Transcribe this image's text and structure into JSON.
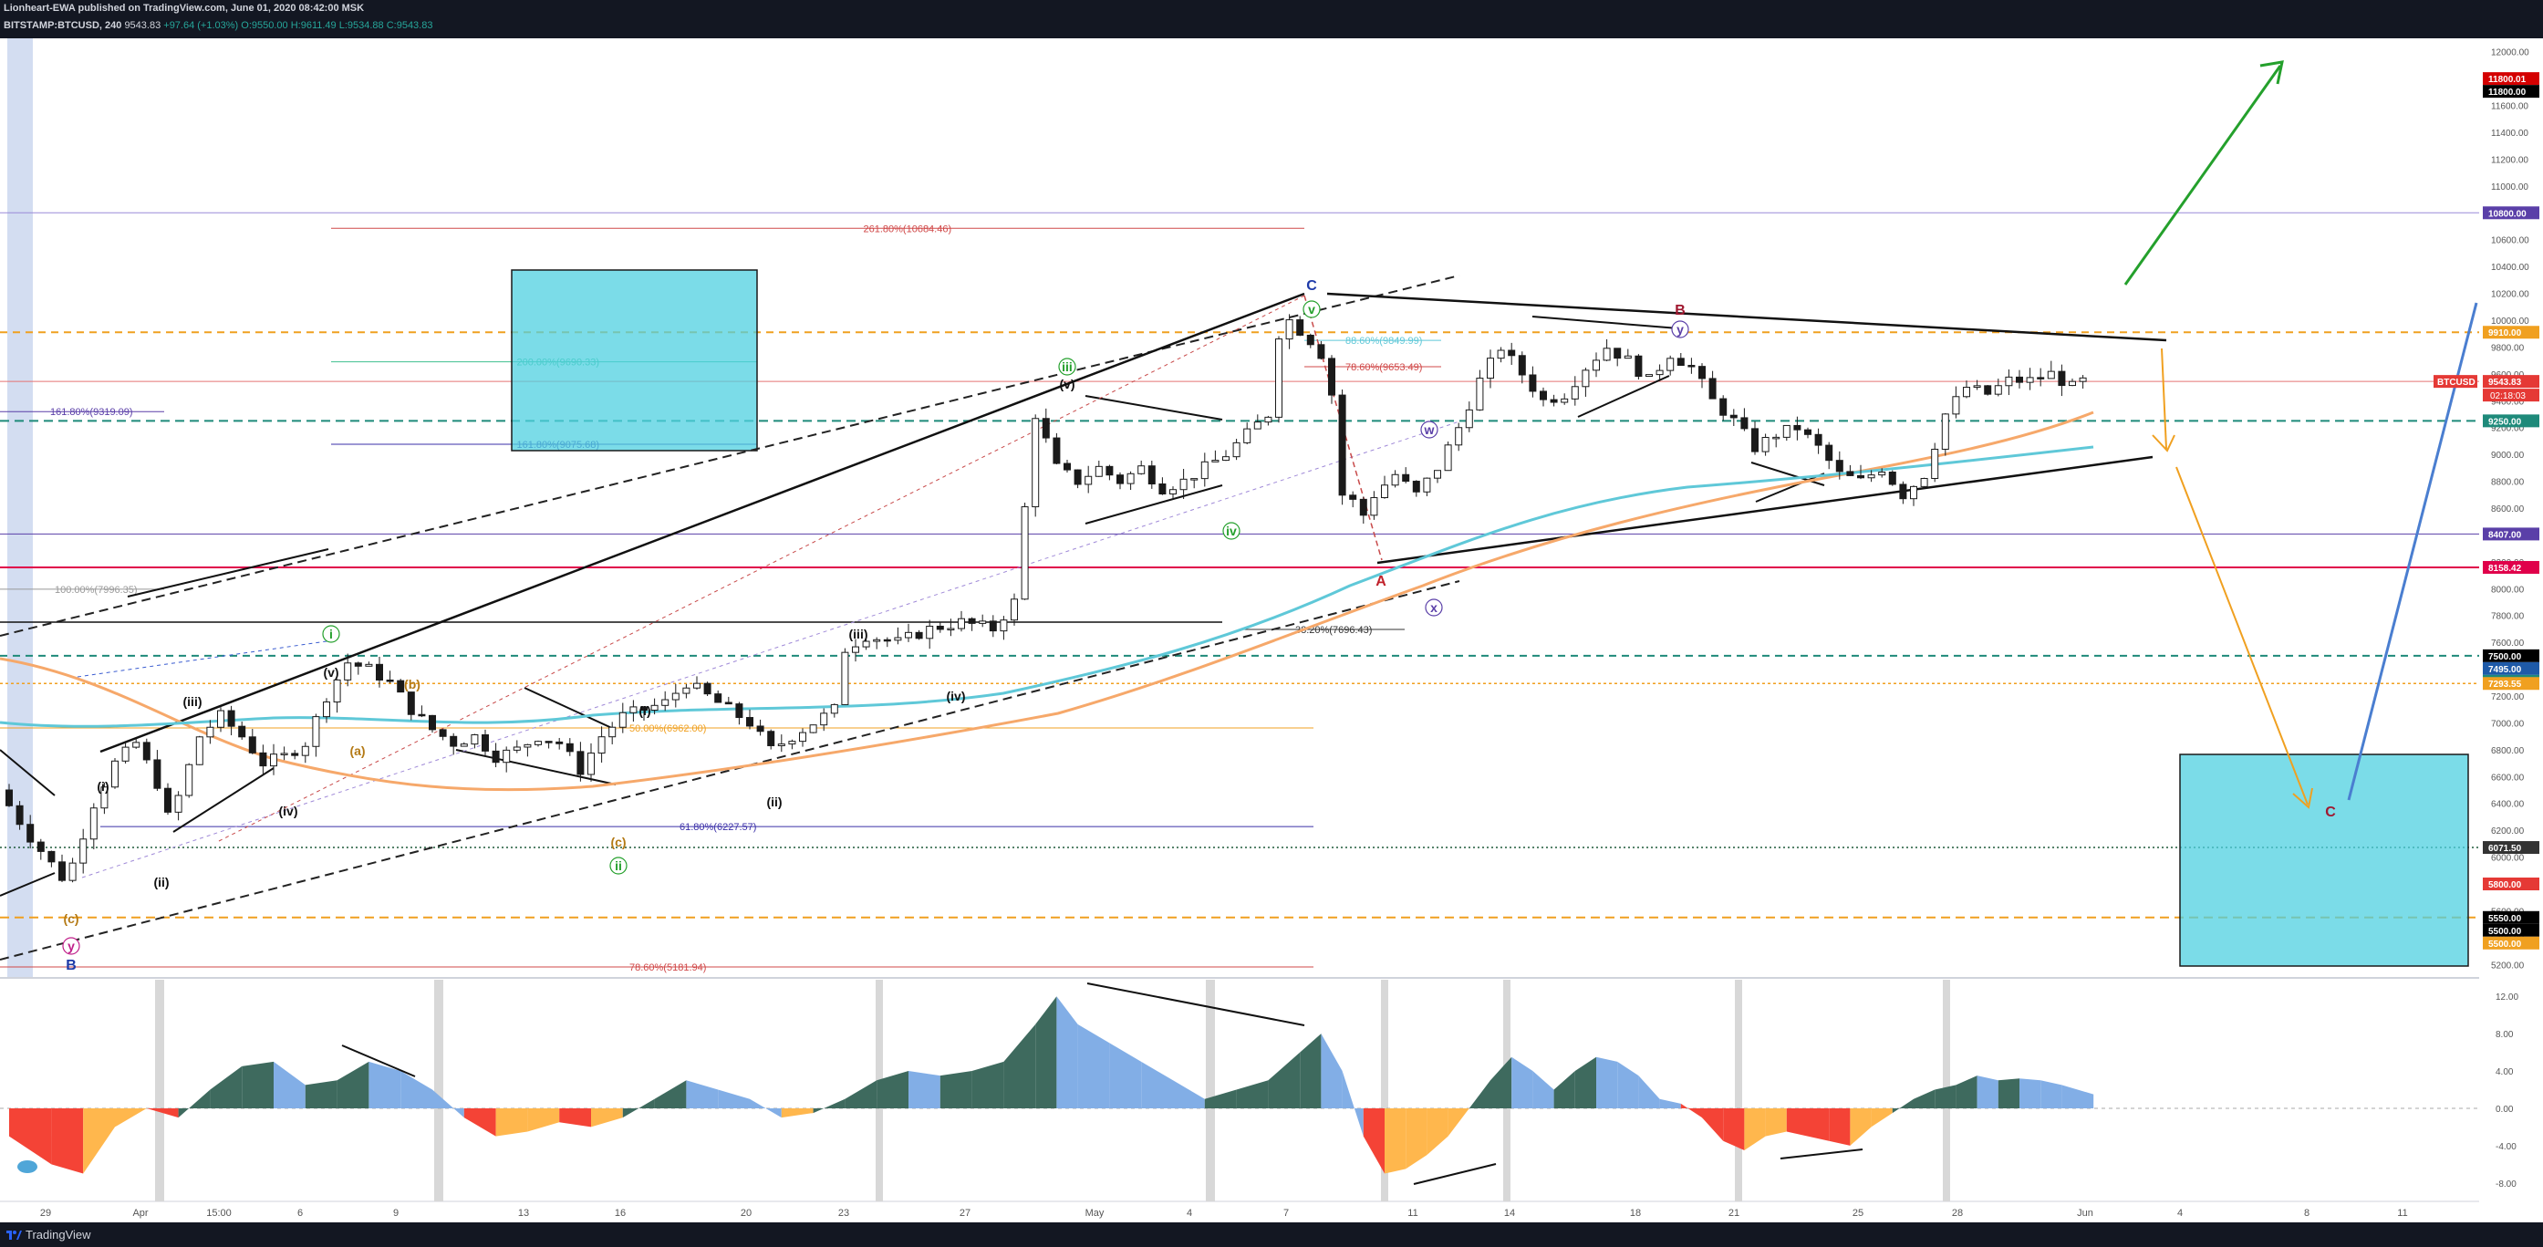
{
  "header": {
    "line1": "Lionheart-EWA published on TradingView.com, June 01, 2020 08:42:00 MSK",
    "symbol": "BITSTAMP:BTCUSD, 240",
    "last": "9543.83",
    "change": "+97.64 (+1.03%)",
    "ohlc": "O:9550.00 H:9611.49 L:9534.88 C:9543.83"
  },
  "footer": {
    "brand": "TradingView"
  },
  "chart_data": {
    "type": "candlestick",
    "symbol": "BITSTAMP:BTCUSD",
    "interval": "240",
    "ylim": [
      5100,
      12100
    ],
    "y_ticks": [
      5200,
      5400,
      5600,
      5800,
      6000,
      6200,
      6400,
      6600,
      6800,
      7000,
      7200,
      7400,
      7600,
      7800,
      8000,
      8200,
      8400,
      8600,
      8800,
      9000,
      9200,
      9400,
      9600,
      9800,
      10000,
      10200,
      10400,
      10600,
      10800,
      11000,
      11200,
      11400,
      11600,
      11800,
      12000
    ],
    "x_ticks": [
      "29",
      "Apr",
      "15:00",
      "6",
      "9",
      "13",
      "16",
      "20",
      "23",
      "27",
      "May",
      "4",
      "7",
      "11",
      "14",
      "18",
      "21",
      "25",
      "28",
      "Jun",
      "4",
      "8",
      "11"
    ],
    "price_path": [
      [
        0,
        6500
      ],
      [
        3,
        6150
      ],
      [
        6,
        5850
      ],
      [
        7,
        5950
      ],
      [
        9,
        6400
      ],
      [
        11,
        6700
      ],
      [
        13,
        6850
      ],
      [
        15,
        6550
      ],
      [
        16,
        6300
      ],
      [
        17,
        6450
      ],
      [
        19,
        6900
      ],
      [
        21,
        7050
      ],
      [
        23,
        6900
      ],
      [
        25,
        6700
      ],
      [
        27,
        6750
      ],
      [
        29,
        6850
      ],
      [
        31,
        7200
      ],
      [
        33,
        7450
      ],
      [
        35,
        7400
      ],
      [
        37,
        7300
      ],
      [
        39,
        7100
      ],
      [
        41,
        6950
      ],
      [
        43,
        6850
      ],
      [
        45,
        6900
      ],
      [
        47,
        6750
      ],
      [
        49,
        6800
      ],
      [
        51,
        6900
      ],
      [
        53,
        6850
      ],
      [
        55,
        6650
      ],
      [
        57,
        6900
      ],
      [
        59,
        7050
      ],
      [
        61,
        7100
      ],
      [
        63,
        7150
      ],
      [
        65,
        7300
      ],
      [
        67,
        7200
      ],
      [
        69,
        7100
      ],
      [
        71,
        7000
      ],
      [
        73,
        6800
      ],
      [
        75,
        6900
      ],
      [
        77,
        7000
      ],
      [
        79,
        7100
      ],
      [
        80,
        7550
      ],
      [
        82,
        7650
      ],
      [
        85,
        7600
      ],
      [
        88,
        7700
      ],
      [
        91,
        7750
      ],
      [
        94,
        7700
      ],
      [
        96,
        7900
      ],
      [
        97,
        8600
      ],
      [
        98,
        9300
      ],
      [
        100,
        8900
      ],
      [
        102,
        8800
      ],
      [
        104,
        8900
      ],
      [
        106,
        8800
      ],
      [
        108,
        8900
      ],
      [
        110,
        8750
      ],
      [
        112,
        8800
      ],
      [
        114,
        8900
      ],
      [
        116,
        9000
      ],
      [
        118,
        9150
      ],
      [
        120,
        9300
      ],
      [
        121,
        9900
      ],
      [
        122,
        10000
      ],
      [
        124,
        9850
      ],
      [
        125,
        9750
      ],
      [
        126,
        9450
      ],
      [
        127,
        8700
      ],
      [
        128,
        8650
      ],
      [
        129,
        8550
      ],
      [
        130,
        8700
      ],
      [
        132,
        8850
      ],
      [
        134,
        8700
      ],
      [
        136,
        8900
      ],
      [
        138,
        9200
      ],
      [
        140,
        9550
      ],
      [
        142,
        9800
      ],
      [
        144,
        9600
      ],
      [
        146,
        9400
      ],
      [
        148,
        9450
      ],
      [
        150,
        9650
      ],
      [
        152,
        9800
      ],
      [
        154,
        9700
      ],
      [
        156,
        9550
      ],
      [
        158,
        9750
      ],
      [
        160,
        9650
      ],
      [
        162,
        9400
      ],
      [
        164,
        9250
      ],
      [
        166,
        9050
      ],
      [
        168,
        9150
      ],
      [
        170,
        9200
      ],
      [
        172,
        9050
      ],
      [
        174,
        8850
      ],
      [
        176,
        8800
      ],
      [
        178,
        8900
      ],
      [
        180,
        8700
      ],
      [
        182,
        8850
      ],
      [
        184,
        9300
      ],
      [
        186,
        9500
      ],
      [
        188,
        9450
      ],
      [
        190,
        9550
      ],
      [
        192,
        9550
      ],
      [
        194,
        9600
      ],
      [
        196,
        9500
      ],
      [
        197,
        9543.83
      ]
    ],
    "horizontal_levels": [
      {
        "value": 11800.01,
        "label": "11800.01",
        "color": "#d40000"
      },
      {
        "value": 11800.0,
        "label": "11800.00",
        "color": "#000000"
      },
      {
        "value": 10800.0,
        "label": "10800.00",
        "color": "#5a3fa8"
      },
      {
        "value": 9910.0,
        "label": "9910.00",
        "color": "#f0a020"
      },
      {
        "value": 9543.83,
        "label": "9543.83",
        "color": "#e53935"
      },
      {
        "value": 9250.0,
        "label": "9250.00",
        "color": "#1e8a7a"
      },
      {
        "value": 8407.0,
        "label": "8407.00",
        "color": "#5a3fa8"
      },
      {
        "value": 8158.42,
        "label": "8158.42",
        "color": "#e0004a"
      },
      {
        "value": 7500.0,
        "label": "7500.00",
        "color": "#000000"
      },
      {
        "value": 7495.0,
        "label": "7495.00",
        "color": "#1e5aa8"
      },
      {
        "value": 7495.0,
        "label": "7495.00",
        "color": "#1e8a7a"
      },
      {
        "value": 7293.55,
        "label": "7293.55",
        "color": "#f0a020"
      },
      {
        "value": 6071.5,
        "label": "6071.50",
        "color": "#333333"
      },
      {
        "value": 5800.0,
        "label": "5800.00",
        "color": "#e53935"
      },
      {
        "value": 5550.0,
        "label": "5550.00",
        "color": "#000000"
      },
      {
        "value": 5500.0,
        "label": "5500.00",
        "color": "#000000"
      },
      {
        "value": 5500.0,
        "label": "5500.00",
        "color": "#f0a020"
      }
    ],
    "price_tag": {
      "symbol": "BTCUSD",
      "value": "9543.83",
      "countdown": "02:18:03"
    },
    "fib_labels": [
      "261.80%(10684.46)",
      "200.00%(9690.33)",
      "161.80%(9075.68)",
      "161.80%(9319.09)",
      "100.00%(7996.35)",
      "88.60%(9849.99)",
      "78.60%(9653.49)",
      "38.20%(7696.43)",
      "50.00%(6962.00)",
      "61.80%(6227.57)",
      "78.60%(5181.94)"
    ],
    "wave_labels": [
      "B",
      "(c)",
      "y",
      "(i)",
      "(ii)",
      "(iii)",
      "(iv)",
      "(v)",
      "i",
      "(a)",
      "(b)",
      "(c)",
      "ii",
      "(i)",
      "(ii)",
      "(iii)",
      "(iv)",
      "(v)",
      "iii",
      "iv",
      "v",
      "C",
      "A",
      "w",
      "x",
      "y",
      "B",
      "C"
    ],
    "oscillator": {
      "ylim": [
        -9,
        13
      ],
      "y_ticks": [
        "12.00",
        "8.00",
        "4.00",
        "0.00",
        "-4.00",
        "-8.00"
      ],
      "values": [
        [
          0,
          -3
        ],
        [
          4,
          -6
        ],
        [
          7,
          -7
        ],
        [
          10,
          -2
        ],
        [
          13,
          0
        ],
        [
          16,
          -1
        ],
        [
          19,
          2
        ],
        [
          22,
          4.5
        ],
        [
          25,
          5
        ],
        [
          28,
          2.5
        ],
        [
          31,
          3
        ],
        [
          34,
          5
        ],
        [
          37,
          4
        ],
        [
          40,
          2
        ],
        [
          43,
          -1
        ],
        [
          46,
          -3
        ],
        [
          49,
          -2.5
        ],
        [
          52,
          -1.5
        ],
        [
          55,
          -2
        ],
        [
          58,
          -1
        ],
        [
          61,
          1
        ],
        [
          64,
          3
        ],
        [
          67,
          2
        ],
        [
          70,
          1
        ],
        [
          73,
          -1
        ],
        [
          76,
          -0.5
        ],
        [
          79,
          1
        ],
        [
          82,
          3
        ],
        [
          85,
          4
        ],
        [
          88,
          3.5
        ],
        [
          91,
          4
        ],
        [
          94,
          5
        ],
        [
          97,
          9
        ],
        [
          99,
          12
        ],
        [
          101,
          9
        ],
        [
          104,
          7
        ],
        [
          107,
          5
        ],
        [
          110,
          3
        ],
        [
          113,
          1
        ],
        [
          116,
          2
        ],
        [
          119,
          3
        ],
        [
          122,
          6
        ],
        [
          124,
          8
        ],
        [
          126,
          4
        ],
        [
          128,
          -3
        ],
        [
          130,
          -7
        ],
        [
          132,
          -6.5
        ],
        [
          134,
          -5
        ],
        [
          136,
          -3
        ],
        [
          138,
          0
        ],
        [
          140,
          3
        ],
        [
          142,
          5.5
        ],
        [
          144,
          4
        ],
        [
          146,
          2
        ],
        [
          148,
          4
        ],
        [
          150,
          5.5
        ],
        [
          152,
          5
        ],
        [
          154,
          3.5
        ],
        [
          156,
          1
        ],
        [
          158,
          0.5
        ],
        [
          160,
          -1
        ],
        [
          162,
          -3.5
        ],
        [
          164,
          -4.5
        ],
        [
          166,
          -3
        ],
        [
          168,
          -2.5
        ],
        [
          170,
          -3
        ],
        [
          172,
          -3.5
        ],
        [
          174,
          -4
        ],
        [
          176,
          -2
        ],
        [
          178,
          -0.5
        ],
        [
          180,
          1
        ],
        [
          182,
          2
        ],
        [
          184,
          2.5
        ],
        [
          186,
          3.5
        ],
        [
          188,
          3
        ],
        [
          190,
          3.2
        ],
        [
          192,
          3
        ],
        [
          194,
          2.5
        ],
        [
          197,
          1.5
        ]
      ]
    }
  }
}
